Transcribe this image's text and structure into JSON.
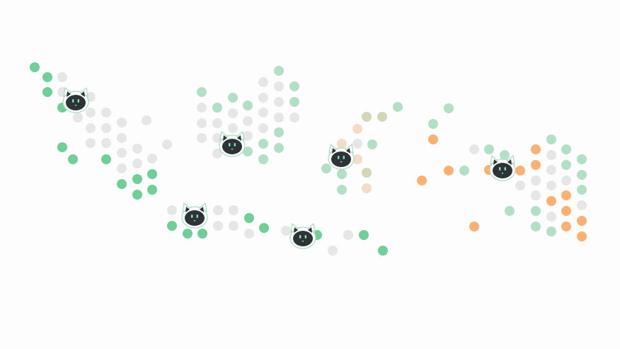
{
  "colors": {
    "background": "#fdfdfd",
    "dot_neutral": "#e6e6e6",
    "dot_green": "#6fcf97",
    "dot_green_light": "#b2dfc6",
    "dot_orange": "#fdb071",
    "dot_peach": "#f3dcc8",
    "dot_olive": "#d4d6b8",
    "cat_face": "#2e3338",
    "cat_outline": "#a8dcc0",
    "cat_eyes": "#7ee2b2"
  },
  "cats": [
    {
      "name": "cat-1"
    },
    {
      "name": "cat-2"
    },
    {
      "name": "cat-3"
    },
    {
      "name": "cat-4"
    },
    {
      "name": "cat-5"
    },
    {
      "name": "cat-6"
    }
  ]
}
